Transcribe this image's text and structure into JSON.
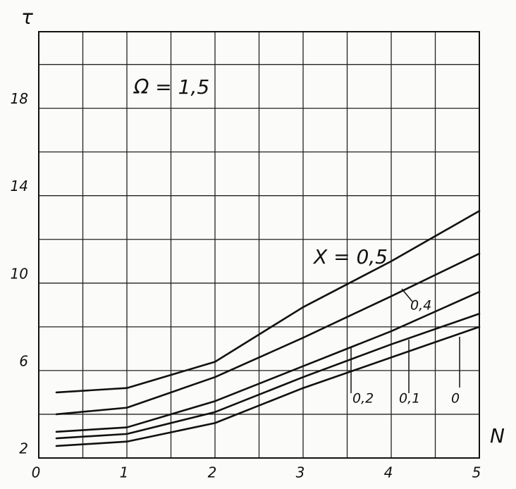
{
  "chart_data": {
    "type": "line",
    "x_label": "N",
    "y_label": "τ",
    "annotations": [
      "Ω = 1,5"
    ],
    "x": [
      0.2,
      1,
      2,
      3,
      4,
      5
    ],
    "series": [
      {
        "name": "Х = 0,5",
        "color": "#111111",
        "values": [
          5.0,
          5.2,
          6.4,
          8.9,
          11.0,
          13.3
        ]
      },
      {
        "name": "0,4",
        "color": "#111111",
        "values": [
          4.0,
          4.3,
          5.7,
          7.5,
          9.4,
          11.35
        ]
      },
      {
        "name": "0,2",
        "color": "#111111",
        "values": [
          3.2,
          3.4,
          4.6,
          6.2,
          7.8,
          9.6
        ]
      },
      {
        "name": "0,1",
        "color": "#111111",
        "values": [
          2.9,
          3.1,
          4.1,
          5.7,
          7.2,
          8.6
        ]
      },
      {
        "name": "0",
        "color": "#111111",
        "values": [
          2.55,
          2.75,
          3.6,
          5.2,
          6.6,
          8.0
        ]
      }
    ],
    "xlim": [
      0,
      5
    ],
    "ylim": [
      2,
      21.5
    ],
    "xticks": [
      0,
      1,
      2,
      3,
      4,
      5
    ],
    "yticks": [
      2,
      6,
      10,
      14,
      18
    ],
    "xminor": [
      0.5,
      1.5,
      2.5,
      3.5,
      4.5
    ],
    "yminor": [
      4,
      8,
      12,
      16,
      20
    ],
    "grid": true
  }
}
